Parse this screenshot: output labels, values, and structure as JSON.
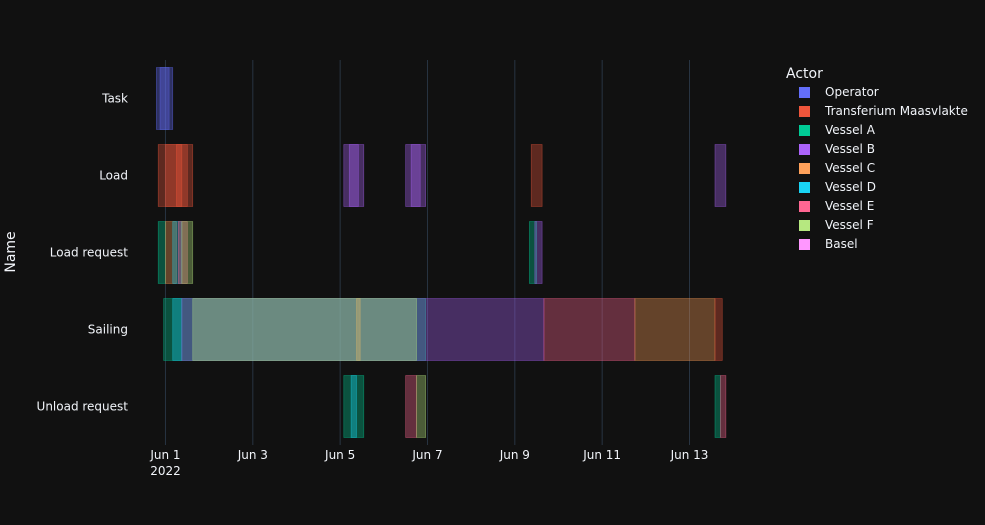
{
  "chart_data": {
    "type": "timeline",
    "ylabel": "Name",
    "legend": {
      "title": "Actor",
      "placement": "top-right",
      "entries": [
        {
          "name": "Operator",
          "color": "#636efa"
        },
        {
          "name": "Transferium Maasvlakte",
          "color": "#ef553b"
        },
        {
          "name": "Vessel A",
          "color": "#00cc96"
        },
        {
          "name": "Vessel B",
          "color": "#ab63fa"
        },
        {
          "name": "Vessel C",
          "color": "#ffa15a"
        },
        {
          "name": "Vessel D",
          "color": "#19d3f3"
        },
        {
          "name": "Vessel E",
          "color": "#ff6692"
        },
        {
          "name": "Vessel F",
          "color": "#b6e880"
        },
        {
          "name": "Basel",
          "color": "#ff97ff"
        }
      ]
    },
    "categories": [
      "Task",
      "Load",
      "Load request",
      "Sailing",
      "Unload request"
    ],
    "x_ticks": [
      {
        "date": "2022-06-01",
        "label": "Jun 1",
        "sublabel": "2022"
      },
      {
        "date": "2022-06-03",
        "label": "Jun 3"
      },
      {
        "date": "2022-06-05",
        "label": "Jun 5"
      },
      {
        "date": "2022-06-07",
        "label": "Jun 7"
      },
      {
        "date": "2022-06-09",
        "label": "Jun 9"
      },
      {
        "date": "2022-06-11",
        "label": "Jun 11"
      },
      {
        "date": "2022-06-13",
        "label": "Jun 13"
      }
    ],
    "xlim": [
      "2022-05-31 10:00",
      "2022-06-14 12:00"
    ],
    "grid": true,
    "tasks": [
      {
        "name": "Task",
        "actor": "Operator",
        "start": "2022-05-31 19:00",
        "end": "2022-06-01 04:00"
      },
      {
        "name": "Task",
        "actor": "Operator",
        "start": "2022-05-31 21:00",
        "end": "2022-06-01 02:00"
      },
      {
        "name": "Load",
        "actor": "Transferium Maasvlakte",
        "start": "2022-05-31 20:00",
        "end": "2022-06-01 15:00"
      },
      {
        "name": "Load",
        "actor": "Transferium Maasvlakte",
        "start": "2022-06-01 00:00",
        "end": "2022-06-01 12:00"
      },
      {
        "name": "Load",
        "actor": "Transferium Maasvlakte",
        "start": "2022-06-01 06:00",
        "end": "2022-06-01 09:00"
      },
      {
        "name": "Load",
        "actor": "Vessel B",
        "start": "2022-06-05 02:00",
        "end": "2022-06-05 13:00"
      },
      {
        "name": "Load",
        "actor": "Vessel B",
        "start": "2022-06-05 05:00",
        "end": "2022-06-05 10:00"
      },
      {
        "name": "Load",
        "actor": "Vessel B",
        "start": "2022-06-06 12:00",
        "end": "2022-06-06 23:00"
      },
      {
        "name": "Load",
        "actor": "Vessel B",
        "start": "2022-06-06 15:00",
        "end": "2022-06-06 20:00"
      },
      {
        "name": "Load",
        "actor": "Transferium Maasvlakte",
        "start": "2022-06-09 09:00",
        "end": "2022-06-09 15:00"
      },
      {
        "name": "Load",
        "actor": "Vessel B",
        "start": "2022-06-13 14:00",
        "end": "2022-06-13 20:00"
      },
      {
        "name": "Load request",
        "actor": "Vessel A",
        "start": "2022-05-31 20:00",
        "end": "2022-06-01 00:00"
      },
      {
        "name": "Load request",
        "actor": "Vessel C",
        "start": "2022-06-01 00:00",
        "end": "2022-06-01 06:00"
      },
      {
        "name": "Load request",
        "actor": "Vessel D",
        "start": "2022-06-01 04:00",
        "end": "2022-06-01 09:00"
      },
      {
        "name": "Load request",
        "actor": "Vessel E",
        "start": "2022-06-01 07:00",
        "end": "2022-06-01 12:00"
      },
      {
        "name": "Load request",
        "actor": "Vessel F",
        "start": "2022-06-01 09:00",
        "end": "2022-06-01 15:00"
      },
      {
        "name": "Load request",
        "actor": "Vessel A",
        "start": "2022-06-09 08:00",
        "end": "2022-06-09 12:00"
      },
      {
        "name": "Load request",
        "actor": "Vessel B",
        "start": "2022-06-09 11:00",
        "end": "2022-06-09 15:00"
      },
      {
        "name": "Sailing",
        "actor": "Vessel A",
        "start": "2022-05-31 23:00",
        "end": "2022-06-06 23:00"
      },
      {
        "name": "Sailing",
        "actor": "Vessel D",
        "start": "2022-06-01 04:00",
        "end": "2022-06-01 09:00"
      },
      {
        "name": "Sailing",
        "actor": "Vessel B",
        "start": "2022-06-01 09:00",
        "end": "2022-06-09 16:00"
      },
      {
        "name": "Sailing",
        "actor": "Vessel C",
        "start": "2022-06-05 09:00",
        "end": "2022-06-05 11:00"
      },
      {
        "name": "Sailing",
        "actor": "Vessel F",
        "start": "2022-06-01 15:00",
        "end": "2022-06-06 18:00"
      },
      {
        "name": "Sailing",
        "actor": "Vessel E",
        "start": "2022-06-09 16:00",
        "end": "2022-06-11 18:00"
      },
      {
        "name": "Sailing",
        "actor": "Vessel C",
        "start": "2022-06-11 18:00",
        "end": "2022-06-13 14:00"
      },
      {
        "name": "Sailing",
        "actor": "Transferium Maasvlakte",
        "start": "2022-06-13 14:00",
        "end": "2022-06-13 18:00"
      },
      {
        "name": "Unload request",
        "actor": "Vessel A",
        "start": "2022-06-05 02:00",
        "end": "2022-06-05 13:00"
      },
      {
        "name": "Unload request",
        "actor": "Vessel D",
        "start": "2022-06-05 06:00",
        "end": "2022-06-05 09:00"
      },
      {
        "name": "Unload request",
        "actor": "Vessel E",
        "start": "2022-06-06 12:00",
        "end": "2022-06-06 18:00"
      },
      {
        "name": "Unload request",
        "actor": "Vessel F",
        "start": "2022-06-06 18:00",
        "end": "2022-06-06 23:00"
      },
      {
        "name": "Unload request",
        "actor": "Vessel A",
        "start": "2022-06-13 14:00",
        "end": "2022-06-13 17:00"
      },
      {
        "name": "Unload request",
        "actor": "Vessel E",
        "start": "2022-06-13 17:00",
        "end": "2022-06-13 20:00"
      }
    ]
  }
}
